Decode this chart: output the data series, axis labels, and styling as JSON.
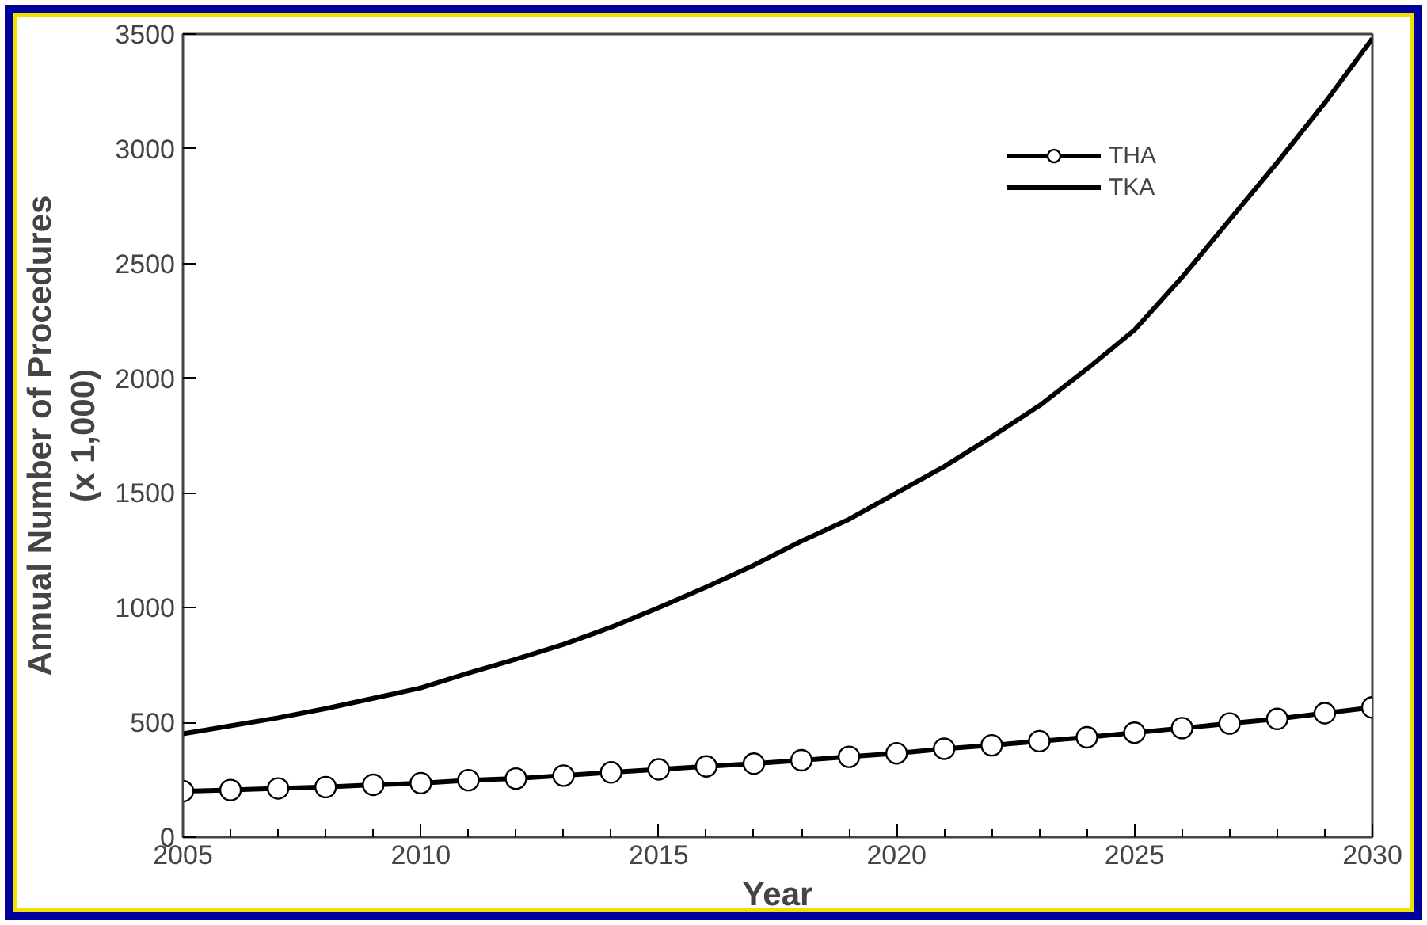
{
  "chart_data": {
    "type": "line",
    "xlabel": "Year",
    "ylabel": "Annual Number of Procedures\n(x 1,000)",
    "x": [
      2005,
      2006,
      2007,
      2008,
      2009,
      2010,
      2011,
      2012,
      2013,
      2014,
      2015,
      2016,
      2017,
      2018,
      2019,
      2020,
      2021,
      2022,
      2023,
      2024,
      2025,
      2026,
      2027,
      2028,
      2029,
      2030
    ],
    "series": [
      {
        "name": "THA",
        "color": "#000000",
        "marker": "circle",
        "values": [
          200,
          205,
          212,
          218,
          228,
          235,
          248,
          255,
          268,
          282,
          295,
          308,
          320,
          335,
          350,
          365,
          385,
          400,
          418,
          435,
          455,
          475,
          495,
          515,
          540,
          565
        ]
      },
      {
        "name": "TKA",
        "color": "#000000",
        "marker": "none",
        "values": [
          450,
          485,
          520,
          560,
          605,
          650,
          715,
          775,
          840,
          915,
          1000,
          1090,
          1185,
          1290,
          1385,
          1500,
          1615,
          1745,
          1880,
          2040,
          2210,
          2440,
          2690,
          2940,
          3200,
          3480
        ]
      }
    ],
    "xlim": [
      2005,
      2030
    ],
    "ylim": [
      0,
      3500
    ],
    "xticks": [
      2005,
      2010,
      2015,
      2020,
      2025,
      2030
    ],
    "yticks": [
      0,
      500,
      1000,
      1500,
      2000,
      2500,
      3000,
      3500
    ],
    "grid": false,
    "legend": "top right",
    "line_style": "solid"
  }
}
